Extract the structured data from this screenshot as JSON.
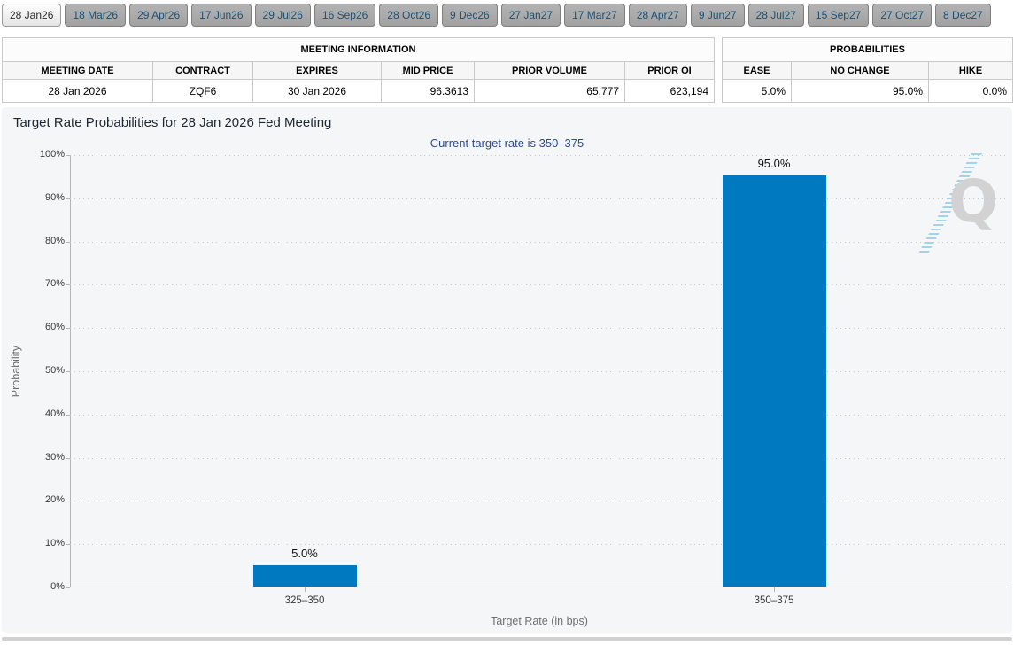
{
  "tabs": [
    {
      "label": "28 Jan26",
      "active": true
    },
    {
      "label": "18 Mar26",
      "active": false
    },
    {
      "label": "29 Apr26",
      "active": false
    },
    {
      "label": "17 Jun26",
      "active": false
    },
    {
      "label": "29 Jul26",
      "active": false
    },
    {
      "label": "16 Sep26",
      "active": false
    },
    {
      "label": "28 Oct26",
      "active": false
    },
    {
      "label": "9 Dec26",
      "active": false
    },
    {
      "label": "27 Jan27",
      "active": false
    },
    {
      "label": "17 Mar27",
      "active": false
    },
    {
      "label": "28 Apr27",
      "active": false
    },
    {
      "label": "9 Jun27",
      "active": false
    },
    {
      "label": "28 Jul27",
      "active": false
    },
    {
      "label": "15 Sep27",
      "active": false
    },
    {
      "label": "27 Oct27",
      "active": false
    },
    {
      "label": "8 Dec27",
      "active": false
    }
  ],
  "meeting_information": {
    "title": "MEETING INFORMATION",
    "columns": [
      "MEETING DATE",
      "CONTRACT",
      "EXPIRES",
      "MID PRICE",
      "PRIOR VOLUME",
      "PRIOR OI"
    ],
    "row": [
      "28 Jan 2026",
      "ZQF6",
      "30 Jan 2026",
      "96.3613",
      "65,777",
      "623,194"
    ]
  },
  "probabilities": {
    "title": "PROBABILITIES",
    "columns": [
      "EASE",
      "NO CHANGE",
      "HIKE"
    ],
    "row": [
      "5.0%",
      "95.0%",
      "0.0%"
    ]
  },
  "chart": {
    "title": "Target Rate Probabilities for 28 Jan 2026 Fed Meeting",
    "subtitle": "Current target rate is 350–375",
    "menu_icon": "hamburger-icon",
    "watermark": "Q"
  },
  "chart_data": {
    "type": "bar",
    "categories": [
      "325–350",
      "350–375"
    ],
    "values": [
      5.0,
      95.0
    ],
    "value_labels": [
      "5.0%",
      "95.0%"
    ],
    "title": "Target Rate Probabilities for 28 Jan 2026 Fed Meeting",
    "subtitle": "Current target rate is 350–375",
    "xlabel": "Target Rate (in bps)",
    "ylabel": "Probability",
    "ylim": [
      0,
      100
    ],
    "ytick_step": 10,
    "ytick_suffix": "%",
    "legend": "none",
    "grid": "horizontal-dotted",
    "bar_color": "#0079c1"
  },
  "colors": {
    "bar": "#0079c1",
    "subtitle_text": "#2b4a96",
    "panel_background": "#f5f6f7",
    "tab_inactive_bg": "#a9a9a9",
    "tab_text": "#1d5174"
  }
}
